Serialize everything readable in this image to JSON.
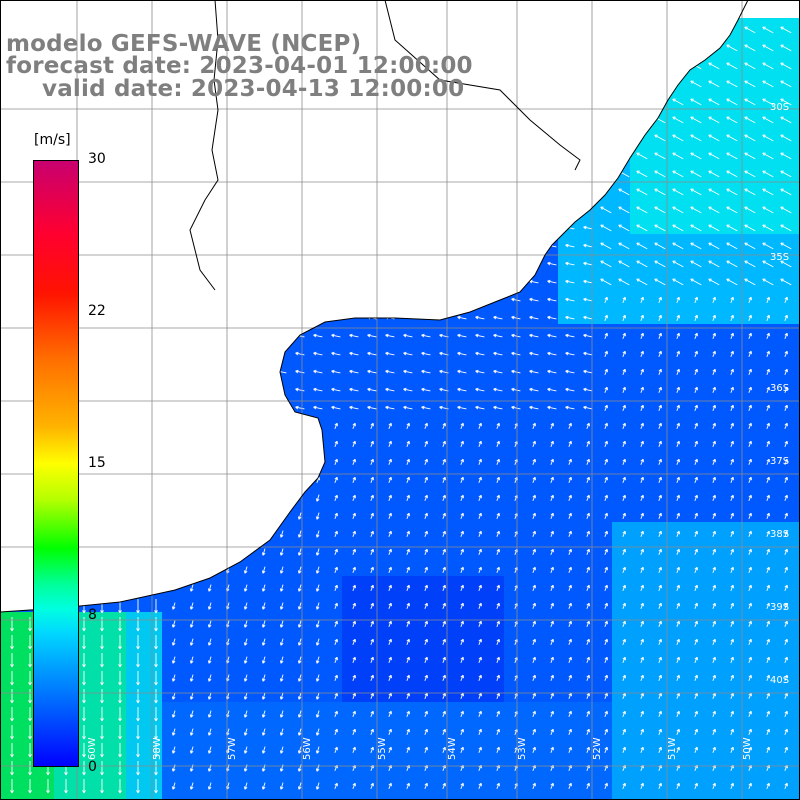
{
  "title": {
    "line1": "modelo GEFS-WAVE (NCEP)",
    "line2": "forecast date: 2023-04-01 12:00:00",
    "line3": "valid date: 2023-04-13 12:00:00"
  },
  "legend": {
    "unit": "[m/s]",
    "ticks": [
      "30",
      "22",
      "15",
      "8",
      "0"
    ]
  },
  "map": {
    "variable": "wind speed and direction",
    "lat_labels": [
      "30S",
      "35S",
      "36S",
      "37S",
      "38S",
      "39S",
      "40S"
    ],
    "lon_labels": [
      "60W",
      "58W",
      "57W",
      "56W",
      "55W",
      "54W",
      "53W",
      "52W",
      "51W",
      "50W"
    ]
  }
}
